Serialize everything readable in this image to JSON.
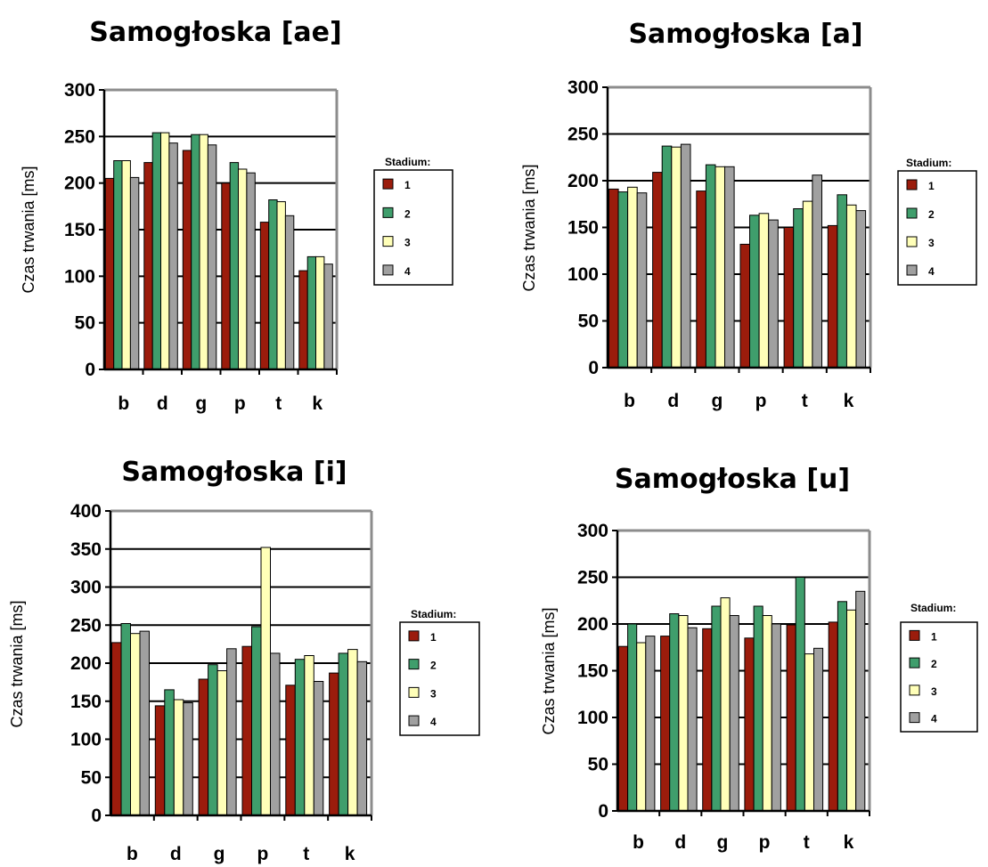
{
  "colors": {
    "1": "#9b1c0c",
    "2": "#3f9e6c",
    "3": "#ffffb8",
    "4": "#a0a0a0"
  },
  "chart_data": [
    {
      "type": "bar",
      "title": "Samogłoska [ae]",
      "ylabel": "Czas trwania [ms]",
      "ylim": [
        0,
        300
      ],
      "yticks": [
        0,
        50,
        100,
        150,
        200,
        250,
        300
      ],
      "grid": true,
      "categories": [
        "b",
        "d",
        "g",
        "p",
        "t",
        "k"
      ],
      "legend": {
        "title": "Stadium:",
        "placement": "right"
      },
      "series": [
        {
          "name": "1",
          "values": [
            205,
            222,
            235,
            200,
            158,
            106
          ]
        },
        {
          "name": "2",
          "values": [
            224,
            254,
            252,
            222,
            182,
            121
          ]
        },
        {
          "name": "3",
          "values": [
            224,
            254,
            252,
            215,
            180,
            121
          ]
        },
        {
          "name": "4",
          "values": [
            206,
            243,
            241,
            211,
            165,
            113
          ]
        }
      ]
    },
    {
      "type": "bar",
      "title": "Samogłoska [a]",
      "ylabel": "Czas trwania [ms]",
      "ylim": [
        0,
        300
      ],
      "yticks": [
        0,
        50,
        100,
        150,
        200,
        250,
        300
      ],
      "grid": true,
      "categories": [
        "b",
        "d",
        "g",
        "p",
        "t",
        "k"
      ],
      "legend": {
        "title": "Stadium:",
        "placement": "right"
      },
      "series": [
        {
          "name": "1",
          "values": [
            191,
            209,
            189,
            132,
            150,
            152
          ]
        },
        {
          "name": "2",
          "values": [
            188,
            237,
            217,
            163,
            170,
            185
          ]
        },
        {
          "name": "3",
          "values": [
            193,
            236,
            215,
            165,
            178,
            174
          ]
        },
        {
          "name": "4",
          "values": [
            187,
            239,
            215,
            158,
            206,
            168
          ]
        }
      ]
    },
    {
      "type": "bar",
      "title": "Samogłoska [i]",
      "ylabel": "Czas trwania [ms]",
      "ylim": [
        0,
        400
      ],
      "yticks": [
        0,
        50,
        100,
        150,
        200,
        250,
        300,
        350,
        400
      ],
      "grid": true,
      "categories": [
        "b",
        "d",
        "g",
        "p",
        "t",
        "k"
      ],
      "legend": {
        "title": "Stadium:",
        "placement": "right"
      },
      "series": [
        {
          "name": "1",
          "values": [
            227,
            144,
            179,
            222,
            171,
            187
          ]
        },
        {
          "name": "2",
          "values": [
            252,
            165,
            198,
            248,
            205,
            213
          ]
        },
        {
          "name": "3",
          "values": [
            239,
            152,
            190,
            352,
            210,
            218
          ]
        },
        {
          "name": "4",
          "values": [
            242,
            148,
            219,
            213,
            176,
            202
          ]
        }
      ]
    },
    {
      "type": "bar",
      "title": "Samogłoska [u]",
      "ylabel": "Czas trwania [ms]",
      "ylim": [
        0,
        300
      ],
      "yticks": [
        0,
        50,
        100,
        150,
        200,
        250,
        300
      ],
      "grid": true,
      "categories": [
        "b",
        "d",
        "g",
        "p",
        "t",
        "k"
      ],
      "legend": {
        "title": "Stadium:",
        "placement": "right"
      },
      "series": [
        {
          "name": "1",
          "values": [
            176,
            187,
            195,
            185,
            199,
            202
          ]
        },
        {
          "name": "2",
          "values": [
            200,
            211,
            219,
            219,
            250,
            224
          ]
        },
        {
          "name": "3",
          "values": [
            180,
            209,
            228,
            209,
            168,
            215
          ]
        },
        {
          "name": "4",
          "values": [
            187,
            196,
            209,
            200,
            174,
            235
          ]
        }
      ]
    }
  ]
}
